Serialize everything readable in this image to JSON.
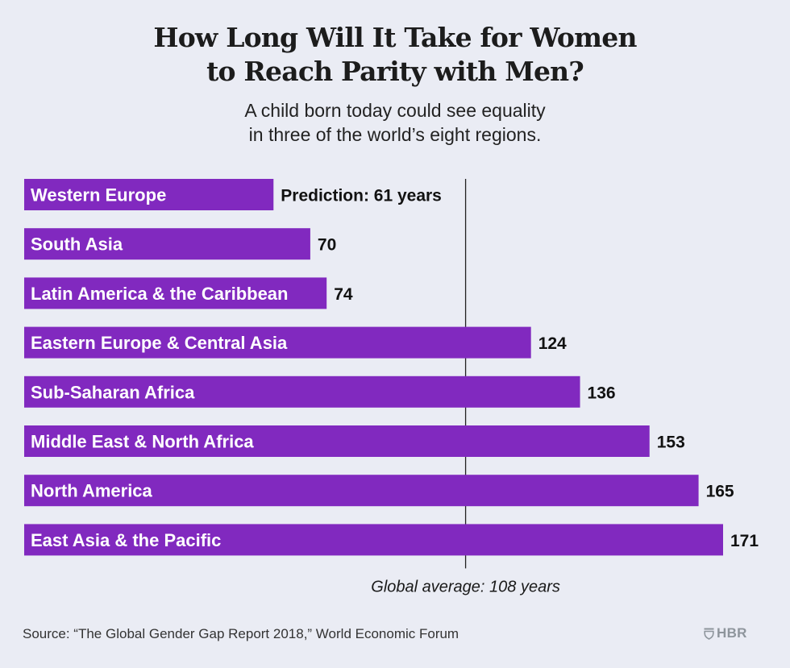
{
  "header": {
    "title_line1": "How Long Will It Take for Women",
    "title_line2": "to Reach Parity with Men?",
    "subtitle_line1": "A child born today could see equality",
    "subtitle_line2": "in three of the world’s eight regions."
  },
  "footer": {
    "source": "Source: “The Global Gender Gap Report 2018,” World Economic Forum",
    "logo_text": "HBR",
    "logo_icon": "shield-icon"
  },
  "colors": {
    "bar": "#8129bf",
    "background": "#eaecf4",
    "reference_line": "#222222",
    "logo": "#8e959c"
  },
  "chart_data": {
    "type": "bar",
    "orientation": "horizontal",
    "title": "How Long Will It Take for Women to Reach Parity with Men?",
    "subtitle": "A child born today could see equality in three of the world’s eight regions.",
    "xlabel": "",
    "ylabel": "",
    "unit": "years",
    "categories": [
      "Western Europe",
      "South Asia",
      "Latin America & the Caribbean",
      "Eastern Europe & Central Asia",
      "Sub-Saharan Africa",
      "Middle East & North Africa",
      "North America",
      "East Asia & the Pacific"
    ],
    "values": [
      61,
      70,
      74,
      124,
      136,
      153,
      165,
      171
    ],
    "value_labels": [
      "Prediction: 61 years",
      "70",
      "74",
      "124",
      "136",
      "153",
      "165",
      "171"
    ],
    "xlim": [
      0,
      171
    ],
    "grid": false,
    "legend": "none",
    "reference_line": {
      "value": 108,
      "label": "Global average: 108 years"
    },
    "source": "Source: “The Global Gender Gap Report 2018,” World Economic Forum"
  }
}
